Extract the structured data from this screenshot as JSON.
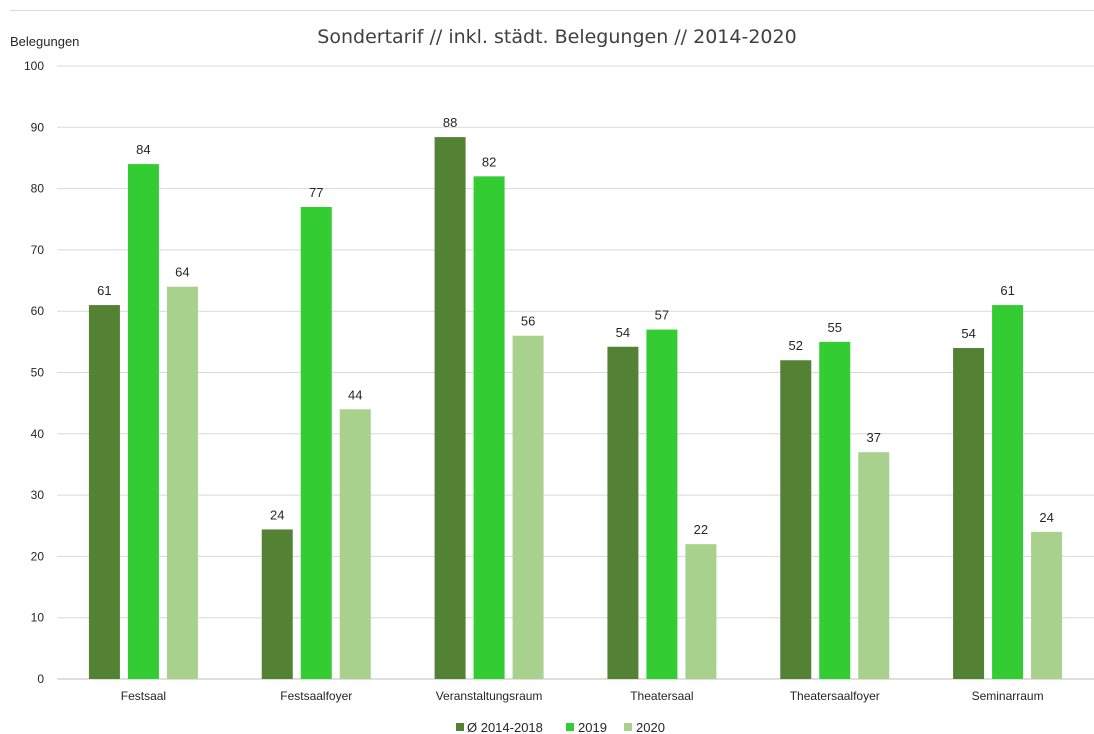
{
  "chart_data": {
    "type": "bar",
    "title": "Sondertarif // inkl. städt. Belegungen // 2014-2020",
    "ylabel": "Belegungen",
    "xlabel": "",
    "ylim": [
      0,
      100
    ],
    "yticks": [
      0,
      10,
      20,
      30,
      40,
      50,
      60,
      70,
      80,
      90,
      100
    ],
    "grid": true,
    "legend_position": "bottom",
    "categories": [
      "Festsaal",
      "Festsaalfoyer",
      "Veranstaltungsraum",
      "Theatersaal",
      "Theatersaalfoyer",
      "Seminarraum"
    ],
    "series": [
      {
        "name": "Ø 2014-2018",
        "color": "#548235",
        "values": [
          61,
          24.4,
          88.4,
          54.2,
          52,
          54
        ],
        "labels": [
          "61",
          "24",
          "88",
          "54",
          "52",
          "54"
        ]
      },
      {
        "name": "2019",
        "color": "#33cc33",
        "values": [
          84,
          77,
          82,
          57,
          55,
          61
        ],
        "labels": [
          "84",
          "77",
          "82",
          "57",
          "55",
          "61"
        ]
      },
      {
        "name": "2020",
        "color": "#a9d18e",
        "values": [
          64,
          44,
          56,
          22,
          37,
          24
        ],
        "labels": [
          "64",
          "44",
          "56",
          "22",
          "37",
          "24"
        ]
      }
    ]
  }
}
